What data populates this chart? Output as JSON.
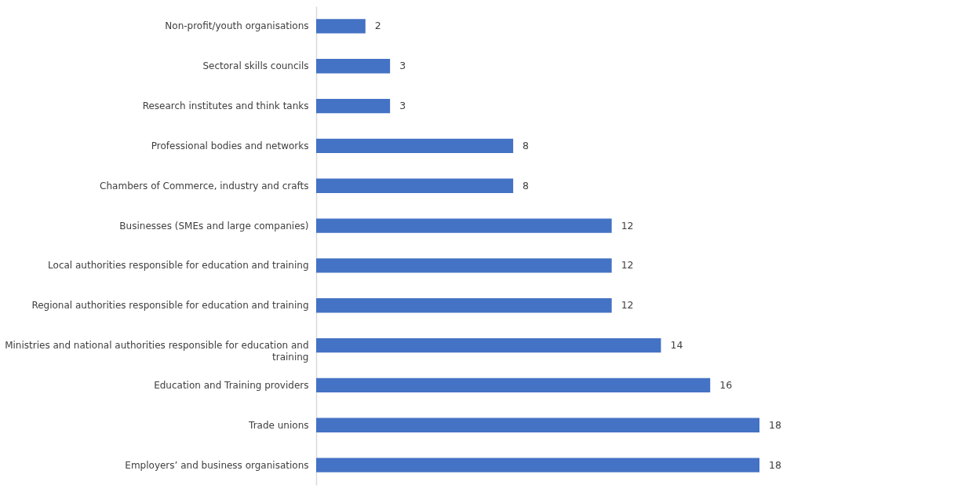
{
  "chart_data": {
    "type": "bar",
    "orientation": "horizontal",
    "categories": [
      "Non-profit/youth organisations",
      "Sectoral skills councils",
      "Research institutes and think tanks",
      "Professional bodies and networks",
      "Chambers of Commerce, industry and crafts",
      "Businesses (SMEs and large companies)",
      "Local authorities responsible for education and training",
      "Regional authorities responsible for education and training",
      "Ministries and national authorities responsible for education and training",
      "Education and Training providers",
      "Trade unions",
      "Employers’ and business organisations"
    ],
    "values": [
      2,
      3,
      3,
      8,
      8,
      12,
      12,
      12,
      14,
      16,
      18,
      18
    ],
    "color": "#4472c4",
    "data_labels": true
  }
}
